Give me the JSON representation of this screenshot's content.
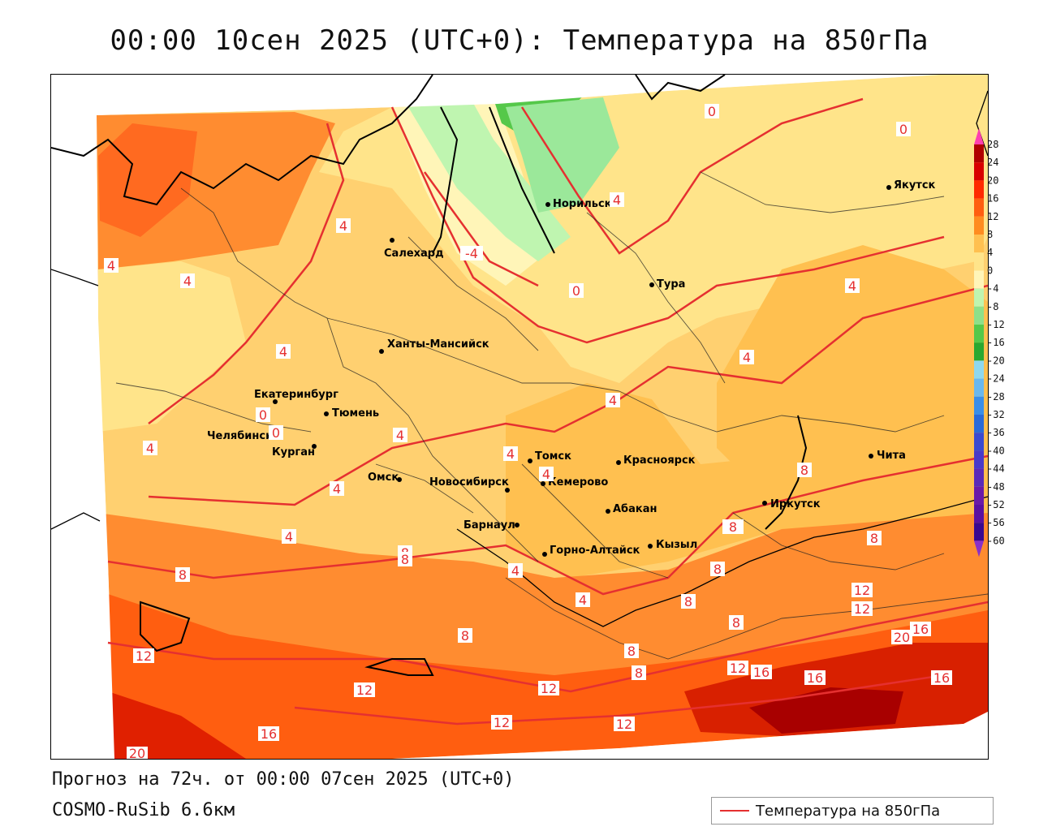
{
  "title": "00:00 10сен 2025 (UTC+0): Температура на 850гПа",
  "footer": {
    "forecast": "Прогноз на 72ч. от 00:00 07сен 2025 (UTC+0)",
    "model": "COSMO-RuSib 6.6км"
  },
  "legend": {
    "label": "Температура на 850гПа"
  },
  "colorbar": {
    "ticks": [
      28,
      24,
      20,
      16,
      12,
      8,
      4,
      0,
      -4,
      -8,
      -12,
      -16,
      -20,
      -24,
      -28,
      -32,
      -36,
      -40,
      -44,
      -48,
      -52,
      -56,
      -60
    ],
    "tick_labels": [
      "28",
      "24",
      "20",
      "16",
      "12",
      "8",
      "4",
      "0",
      "-4",
      "-8",
      "-12",
      "-16",
      "-20",
      "-24",
      "-28",
      "-32",
      "-36",
      "-40",
      "-44",
      "-48",
      "-52",
      "-56",
      "-60"
    ],
    "colors": [
      "#b00000",
      "#d80000",
      "#ff2a00",
      "#ff5e10",
      "#ff8c20",
      "#ffc050",
      "#ffe48a",
      "#fff5b8",
      "#bff5b0",
      "#8ee08a",
      "#55c84a",
      "#2aa830",
      "#8fd8ee",
      "#6ab8ee",
      "#3a8ee8",
      "#2a6ad8",
      "#3a4ad0",
      "#4a3ac8",
      "#5a2ab8",
      "#6a1aa8",
      "#5a10a0",
      "#3a0890"
    ]
  },
  "cities": [
    {
      "name": "Норильск"
    },
    {
      "name": "Якутск"
    },
    {
      "name": "Салехард"
    },
    {
      "name": "Тура"
    },
    {
      "name": "Ханты-Мансийск"
    },
    {
      "name": "Екатеринбург"
    },
    {
      "name": "Тюмень"
    },
    {
      "name": "Челябинск"
    },
    {
      "name": "Курган"
    },
    {
      "name": "Омск"
    },
    {
      "name": "Новосибирск"
    },
    {
      "name": "Томск"
    },
    {
      "name": "Кемерово"
    },
    {
      "name": "Красноярск"
    },
    {
      "name": "Барнаул"
    },
    {
      "name": "Абакан"
    },
    {
      "name": "Иркутск"
    },
    {
      "name": "Чита"
    },
    {
      "name": "Кызыл"
    },
    {
      "name": "Горно-Алтайск"
    }
  ],
  "contour_labels": [
    "0",
    "0",
    "4",
    "-4",
    "0",
    "4",
    "4",
    "4",
    "4",
    "0",
    "0",
    "4",
    "4",
    "4",
    "4",
    "4",
    "4",
    "4",
    "4",
    "8",
    "8",
    "4",
    "8",
    "8",
    "8",
    "8",
    "12",
    "12",
    "16",
    "20",
    "12",
    "12",
    "12",
    "16",
    "16",
    "16",
    "12",
    "12",
    "12",
    "16",
    "20",
    "8",
    "8",
    "8",
    "4",
    "4",
    "8",
    "8",
    "8"
  ]
}
